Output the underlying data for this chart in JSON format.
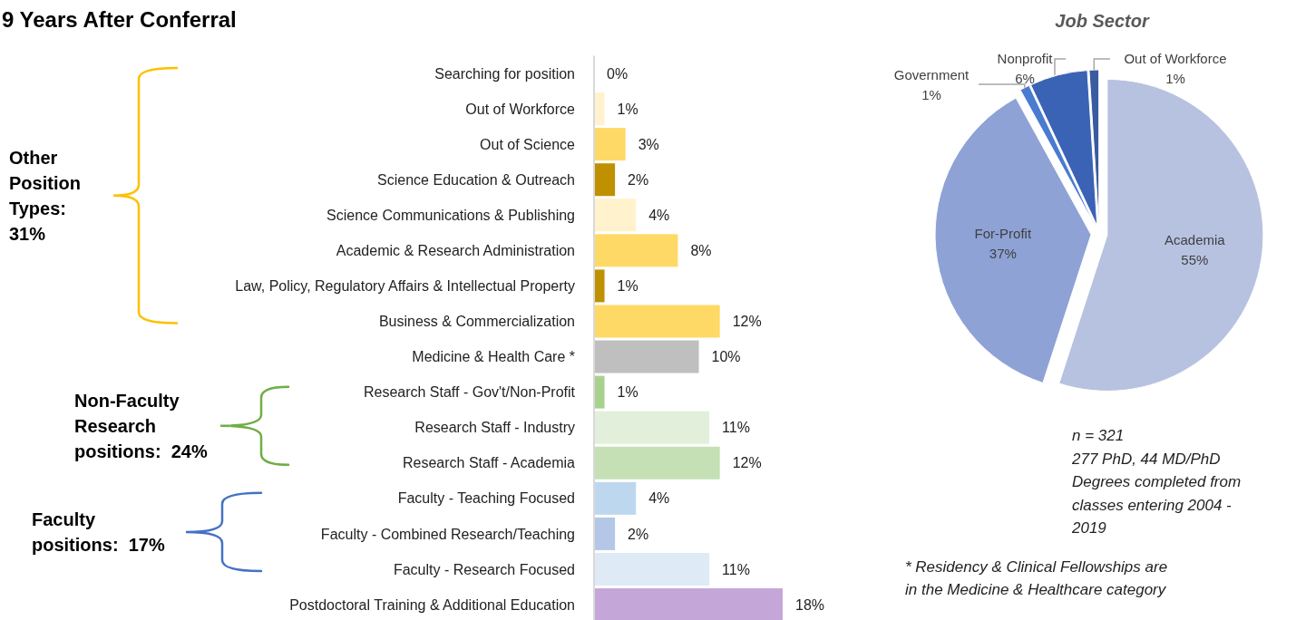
{
  "chart_data": [
    {
      "type": "bar",
      "orientation": "horizontal",
      "title": "9 Years After Conferral",
      "categories": [
        "Searching for position",
        "Out of Workforce",
        "Out of Science",
        "Science Education & Outreach",
        "Science Communications & Publishing",
        "Academic & Research Administration",
        "Law, Policy, Regulatory Affairs & Intellectual Property",
        "Business & Commercialization",
        "Medicine & Health Care *",
        "Research Staff - Gov't/Non-Profit",
        "Research Staff - Industry",
        "Research Staff - Academia",
        "Faculty - Teaching Focused",
        "Faculty - Combined Research/Teaching",
        "Faculty - Research Focused",
        "Postdoctoral Training & Additional Education"
      ],
      "values": [
        0,
        1,
        3,
        2,
        4,
        8,
        1,
        12,
        10,
        1,
        11,
        12,
        4,
        2,
        11,
        18
      ],
      "colors": [
        "#fff2cc",
        "#fff2cc",
        "#ffd966",
        "#bf9000",
        "#fff2cc",
        "#ffd966",
        "#bf9000",
        "#ffd966",
        "#bfbfbf",
        "#a9d18e",
        "#e2efda",
        "#c5e0b4",
        "#bdd7ee",
        "#b4c7e7",
        "#deebf7",
        "#c5a6d8"
      ],
      "value_labels": [
        "0%",
        "1%",
        "3%",
        "2%",
        "4%",
        "8%",
        "1%",
        "12%",
        "10%",
        "1%",
        "11%",
        "12%",
        "4%",
        "2%",
        "11%",
        "18%"
      ],
      "annotations": [
        "Other Position Types: 31%",
        "Non-Faculty Research positions:  24%",
        "Faculty positions:  17%"
      ]
    },
    {
      "type": "pie",
      "title": "Job Sector",
      "categories": [
        "Academia",
        "For-Profit",
        "Government",
        "Nonprofit",
        "Out of Workforce"
      ],
      "values": [
        55,
        37,
        1,
        6,
        1
      ],
      "colors": [
        "#b7c2e1",
        "#8ea2d5",
        "#4a7bd0",
        "#3b63b5",
        "#3a5ba0"
      ],
      "value_labels": [
        "55%",
        "37%",
        "1%",
        "6%",
        "1%"
      ],
      "annotations": [
        "n = 321",
        "277 PhD, 44 MD/PhD Degrees completed from classes entering 2004 - 2019",
        "* Residency & Clinical Fellowships are in the Medicine & Healthcare category"
      ]
    }
  ]
}
